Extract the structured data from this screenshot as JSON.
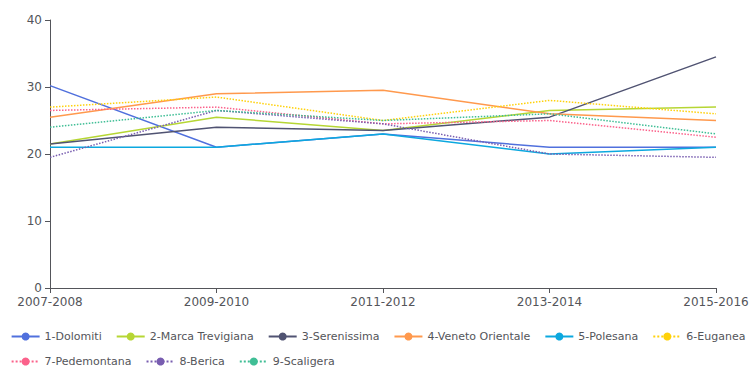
{
  "chart_data": {
    "type": "line",
    "categories": [
      "2007-2008",
      "2009-2010",
      "2011-2012",
      "2013-2014",
      "2015-2016"
    ],
    "series": [
      {
        "name": "1-Dolomiti",
        "values": [
          30.2,
          21.0,
          23.0,
          21.0,
          21.0
        ],
        "line_style": "solid"
      },
      {
        "name": "2-Marca Trevigiana",
        "values": [
          21.5,
          25.5,
          23.5,
          26.5,
          27.0
        ],
        "line_style": "solid"
      },
      {
        "name": "3-Serenissima",
        "values": [
          21.5,
          24.0,
          23.5,
          25.5,
          34.5
        ],
        "line_style": "solid"
      },
      {
        "name": "4-Veneto Orientale",
        "values": [
          25.5,
          29.0,
          29.5,
          26.0,
          25.0
        ],
        "line_style": "solid"
      },
      {
        "name": "5-Polesana",
        "values": [
          21.0,
          21.0,
          23.0,
          20.0,
          21.0
        ],
        "line_style": "solid"
      },
      {
        "name": "6-Euganea",
        "values": [
          27.0,
          28.5,
          25.0,
          28.0,
          26.0
        ],
        "line_style": "dotted"
      },
      {
        "name": "7-Pedemontana",
        "values": [
          26.5,
          27.0,
          24.5,
          25.0,
          22.5
        ],
        "line_style": "dotted"
      },
      {
        "name": "8-Berica",
        "values": [
          19.5,
          26.5,
          24.5,
          20.0,
          19.5
        ],
        "line_style": "dotted"
      },
      {
        "name": "9-Scaligera",
        "values": [
          24.0,
          26.5,
          25.0,
          26.0,
          23.0
        ],
        "line_style": "dotted"
      }
    ],
    "ylim": [
      0,
      40
    ],
    "yticks": [
      0,
      10,
      20,
      30,
      40
    ],
    "grid": false,
    "legend": "bottom"
  }
}
